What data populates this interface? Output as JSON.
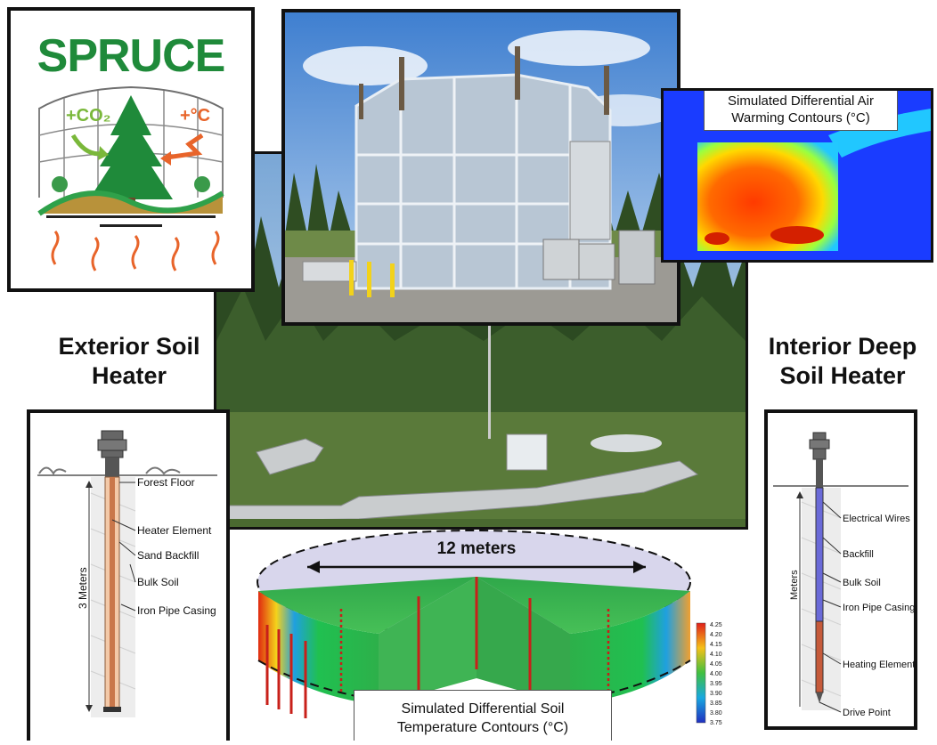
{
  "logo": {
    "text": "SPRUCE",
    "co2": "+CO₂",
    "heat": "+°C"
  },
  "headings": {
    "exterior": [
      "Exterior Soil",
      "Heater"
    ],
    "interior": [
      "Interior Deep",
      "Soil Heater"
    ]
  },
  "air_caption": [
    "Simulated Differential Air",
    "Warming Contours (°C)"
  ],
  "soil_caption": [
    "Simulated Differential Soil",
    "Temperature Contours (°C)"
  ],
  "dimension": "12 meters",
  "exterior_heater": {
    "labels": [
      "Forest Floor",
      "Heater Element",
      "Sand Backfill",
      "Bulk Soil",
      "Iron Pipe Casing"
    ],
    "depth": "3 Meters"
  },
  "interior_heater": {
    "labels": [
      "Electrical Wires",
      "Backfill",
      "Bulk Soil",
      "Iron Pipe Casing",
      "Heating Element",
      "Drive Point"
    ],
    "depth": "Meters"
  },
  "colorbar": [
    "4.25",
    "4.20",
    "4.15",
    "4.10",
    "4.05",
    "4.00",
    "3.95",
    "3.90",
    "3.85",
    "3.80",
    "3.75"
  ],
  "colors": {
    "spruce_green": "#1f8a3a",
    "heat_orange": "#e8642a",
    "frame": "#111111"
  }
}
